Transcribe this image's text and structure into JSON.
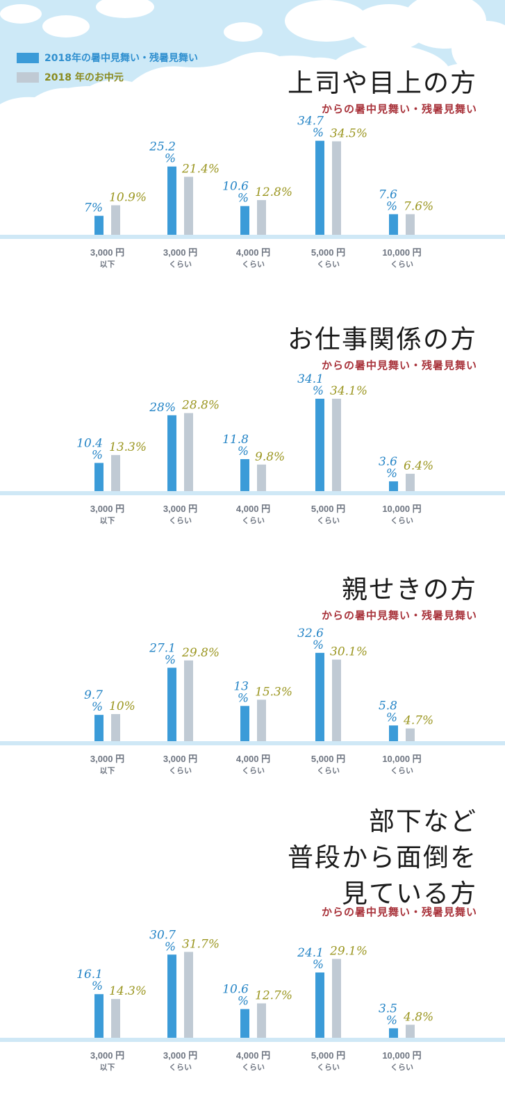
{
  "legend": {
    "items": [
      {
        "label": "2018年の暑中見舞い・残暑見舞い",
        "color": "#3b9bd8",
        "text_color": "#2f8fcf"
      },
      {
        "label": "2018 年のお中元",
        "color": "#c0cad4",
        "text_color": "#8a8a1e"
      }
    ]
  },
  "colors": {
    "blue_bar": "#3b9bd8",
    "gray_bar": "#c0cad4",
    "blue_label": "#2484c6",
    "olive_label": "#9b9620",
    "baseline": "#cfe8f6",
    "sky": "#cde9f7"
  },
  "x_ticks": [
    {
      "line1": "3,000 円",
      "line2": "以下"
    },
    {
      "line1": "3,000 円",
      "line2": "くらい"
    },
    {
      "line1": "4,000 円",
      "line2": "くらい"
    },
    {
      "line1": "5,000 円",
      "line2": "くらい"
    },
    {
      "line1": "10,000 円",
      "line2": "くらい"
    }
  ],
  "sections": [
    {
      "title_lines": [
        "上司や目上の方"
      ],
      "subtitle": "からの暑中見舞い・残暑見舞い"
    },
    {
      "title_lines": [
        "お仕事関係の方"
      ],
      "subtitle": "からの暑中見舞い・残暑見舞い"
    },
    {
      "title_lines": [
        "親せきの方"
      ],
      "subtitle": "からの暑中見舞い・残暑見舞い"
    },
    {
      "title_lines": [
        "部下など",
        "普段から面倒を",
        "見ている方"
      ],
      "subtitle": "からの暑中見舞い・残暑見舞い"
    }
  ],
  "chart_data": [
    {
      "type": "bar",
      "title": "上司や目上の方",
      "categories": [
        "3,000 円 以下",
        "3,000 円 くらい",
        "4,000 円 くらい",
        "5,000 円 くらい",
        "10,000 円 くらい"
      ],
      "series": [
        {
          "name": "2018年の暑中見舞い・残暑見舞い",
          "values": [
            7,
            25.2,
            10.6,
            34.7,
            7.6
          ],
          "labels": [
            [
              "7%"
            ],
            [
              "25.2",
              "%"
            ],
            [
              "10.6",
              "%"
            ],
            [
              "34.7",
              "%"
            ],
            [
              "7.6",
              "%"
            ]
          ]
        },
        {
          "name": "2018 年のお中元",
          "values": [
            10.9,
            21.4,
            12.8,
            34.5,
            7.6
          ],
          "labels": [
            [
              "10.9%"
            ],
            [
              "21.4%"
            ],
            [
              "12.8%"
            ],
            [
              "34.5%"
            ],
            [
              "7.6%"
            ]
          ]
        }
      ]
    },
    {
      "type": "bar",
      "title": "お仕事関係の方",
      "categories": [
        "3,000 円 以下",
        "3,000 円 くらい",
        "4,000 円 くらい",
        "5,000 円 くらい",
        "10,000 円 くらい"
      ],
      "series": [
        {
          "name": "2018年の暑中見舞い・残暑見舞い",
          "values": [
            10.4,
            28,
            11.8,
            34.1,
            3.6
          ],
          "labels": [
            [
              "10.4",
              "%"
            ],
            [
              "28%"
            ],
            [
              "11.8",
              "%"
            ],
            [
              "34.1",
              "%"
            ],
            [
              "3.6",
              "%"
            ]
          ]
        },
        {
          "name": "2018 年のお中元",
          "values": [
            13.3,
            28.8,
            9.8,
            34.1,
            6.4
          ],
          "labels": [
            [
              "13.3%"
            ],
            [
              "28.8%"
            ],
            [
              "9.8%"
            ],
            [
              "34.1%"
            ],
            [
              "6.4%"
            ]
          ]
        }
      ]
    },
    {
      "type": "bar",
      "title": "親せきの方",
      "categories": [
        "3,000 円 以下",
        "3,000 円 くらい",
        "4,000 円 くらい",
        "5,000 円 くらい",
        "10,000 円 くらい"
      ],
      "series": [
        {
          "name": "2018年の暑中見舞い・残暑見舞い",
          "values": [
            9.7,
            27.1,
            13,
            32.6,
            5.8
          ],
          "labels": [
            [
              "9.7",
              "%"
            ],
            [
              "27.1",
              "%"
            ],
            [
              "13",
              "%"
            ],
            [
              "32.6",
              "%"
            ],
            [
              "5.8",
              "%"
            ]
          ]
        },
        {
          "name": "2018 年のお中元",
          "values": [
            10,
            29.8,
            15.3,
            30.1,
            4.7
          ],
          "labels": [
            [
              "10%"
            ],
            [
              "29.8%"
            ],
            [
              "15.3%"
            ],
            [
              "30.1%"
            ],
            [
              "4.7%"
            ]
          ]
        }
      ]
    },
    {
      "type": "bar",
      "title": "部下など普段から面倒を見ている方",
      "categories": [
        "3,000 円 以下",
        "3,000 円 くらい",
        "4,000 円 くらい",
        "5,000 円 くらい",
        "10,000 円 くらい"
      ],
      "series": [
        {
          "name": "2018年の暑中見舞い・残暑見舞い",
          "values": [
            16.1,
            30.7,
            10.6,
            24.1,
            3.5
          ],
          "labels": [
            [
              "16.1",
              "%"
            ],
            [
              "30.7",
              "%"
            ],
            [
              "10.6",
              "%"
            ],
            [
              "24.1",
              "%"
            ],
            [
              "3.5",
              "%"
            ]
          ]
        },
        {
          "name": "2018 年のお中元",
          "values": [
            14.3,
            31.7,
            12.7,
            29.1,
            4.8
          ],
          "labels": [
            [
              "14.3%"
            ],
            [
              "31.7%"
            ],
            [
              "12.7%"
            ],
            [
              "29.1%"
            ],
            [
              "4.8%"
            ]
          ]
        }
      ]
    }
  ]
}
